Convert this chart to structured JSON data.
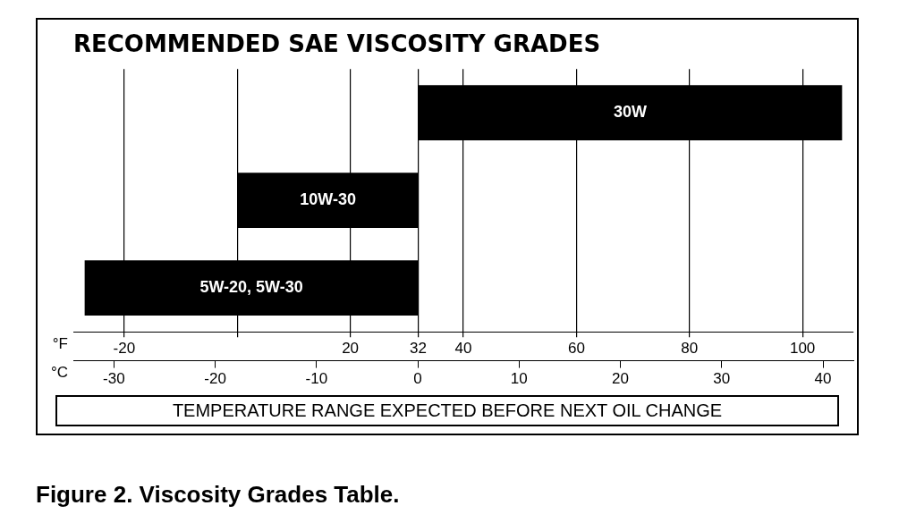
{
  "chart_data": {
    "type": "bar",
    "orientation": "horizontal",
    "title": "RECOMMENDED SAE VISCOSITY GRADES",
    "categories": [
      "30W",
      "10W-30",
      "5W-20, 5W-30"
    ],
    "values": [
      75,
      32,
      59
    ],
    "base": [
      32,
      0,
      -27
    ],
    "color": "#000000",
    "xlabel": "°F",
    "x2label": "°C",
    "xlim": [
      -29,
      109
    ],
    "xticks": [
      -20,
      {
        "value": 0,
        "label": null
      },
      20,
      32,
      40,
      60,
      80,
      100
    ],
    "x2lim": [
      -34,
      43
    ],
    "x2ticks": [
      -30,
      -20,
      -10,
      0,
      10,
      20,
      30,
      40
    ],
    "grid": "x",
    "legend": false,
    "annotations": [
      "TEMPERATURE RANGE EXPECTED BEFORE NEXT OIL CHANGE",
      "Figure 2. Viscosity Grades Table."
    ]
  }
}
